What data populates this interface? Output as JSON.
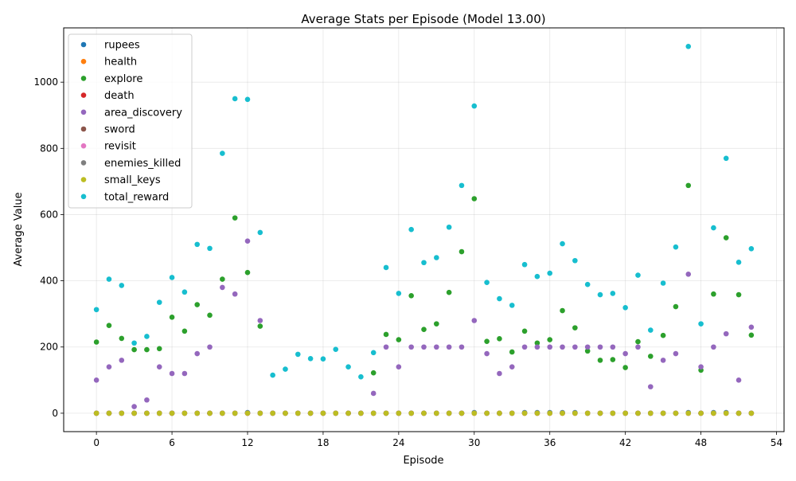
{
  "chart_data": {
    "type": "scatter",
    "title": "Average Stats per Episode (Model 13.00)",
    "xlabel": "Episode",
    "ylabel": "Average Value",
    "xlim": [
      -2.6,
      54.6
    ],
    "ylim": [
      -55.6,
      1164
    ],
    "xticks": [
      0,
      6,
      12,
      18,
      24,
      30,
      36,
      42,
      48,
      54
    ],
    "yticks": [
      0,
      200,
      400,
      600,
      800,
      1000
    ],
    "grid": true,
    "legend_position": "top-left",
    "x": [
      0,
      1,
      2,
      3,
      4,
      5,
      6,
      7,
      8,
      9,
      10,
      11,
      12,
      13,
      14,
      15,
      16,
      17,
      18,
      19,
      20,
      21,
      22,
      23,
      24,
      25,
      26,
      27,
      28,
      29,
      30,
      31,
      32,
      33,
      34,
      35,
      36,
      37,
      38,
      39,
      40,
      41,
      42,
      43,
      44,
      45,
      46,
      47,
      48,
      49,
      50,
      51,
      52
    ],
    "series": [
      {
        "name": "rupees",
        "color": "#1f77b4",
        "values": [
          0,
          0,
          0,
          0,
          0,
          0,
          0,
          0,
          0,
          0,
          0,
          0,
          2,
          0,
          0,
          0,
          0,
          0,
          0,
          0,
          0,
          0,
          0,
          0,
          0,
          0,
          0,
          0,
          0,
          0,
          2,
          0,
          0,
          0,
          2,
          2,
          2,
          2,
          2,
          0,
          0,
          0,
          0,
          0,
          0,
          0,
          0,
          2,
          0,
          2,
          2,
          0,
          0
        ]
      },
      {
        "name": "health",
        "color": "#ff7f0e",
        "values": [
          0,
          0,
          0,
          0,
          0,
          0,
          0,
          0,
          0,
          0,
          0,
          0,
          0,
          0,
          0,
          0,
          0,
          0,
          0,
          0,
          0,
          0,
          0,
          0,
          0,
          0,
          0,
          0,
          0,
          0,
          0,
          0,
          0,
          0,
          0,
          0,
          0,
          0,
          0,
          0,
          0,
          0,
          0,
          0,
          0,
          0,
          0,
          0,
          0,
          0,
          0,
          0,
          0
        ]
      },
      {
        "name": "explore",
        "color": "#2ca02c",
        "values": [
          215,
          265,
          226,
          192,
          192,
          195,
          290,
          248,
          328,
          296,
          405,
          590,
          425,
          263,
          null,
          null,
          null,
          null,
          null,
          null,
          null,
          null,
          122,
          238,
          222,
          355,
          253,
          270,
          365,
          488,
          648,
          217,
          225,
          185,
          248,
          212,
          222,
          310,
          258,
          188,
          160,
          162,
          138,
          216,
          172,
          235,
          322,
          688,
          130,
          360,
          530,
          358,
          236
        ]
      },
      {
        "name": "death",
        "color": "#d62728",
        "values": [
          0,
          0,
          0,
          0,
          0,
          0,
          0,
          0,
          0,
          0,
          0,
          0,
          0,
          0,
          0,
          0,
          0,
          0,
          0,
          0,
          0,
          0,
          0,
          0,
          0,
          0,
          0,
          0,
          0,
          0,
          0,
          0,
          0,
          0,
          0,
          0,
          0,
          0,
          0,
          0,
          0,
          0,
          0,
          0,
          0,
          0,
          0,
          0,
          0,
          0,
          0,
          0,
          0
        ]
      },
      {
        "name": "area_discovery",
        "color": "#9467bd",
        "values": [
          100,
          140,
          160,
          20,
          40,
          140,
          120,
          120,
          180,
          200,
          380,
          360,
          520,
          280,
          null,
          null,
          null,
          null,
          null,
          null,
          null,
          null,
          60,
          200,
          140,
          200,
          200,
          200,
          200,
          200,
          280,
          180,
          120,
          140,
          200,
          200,
          200,
          200,
          200,
          200,
          200,
          200,
          180,
          200,
          80,
          160,
          180,
          420,
          140,
          200,
          240,
          100,
          260
        ]
      },
      {
        "name": "sword",
        "color": "#8c564b",
        "values": [
          0,
          0,
          0,
          0,
          0,
          0,
          0,
          0,
          0,
          0,
          0,
          0,
          0,
          0,
          0,
          0,
          0,
          0,
          0,
          0,
          0,
          0,
          0,
          0,
          0,
          0,
          0,
          0,
          0,
          0,
          0,
          0,
          0,
          0,
          0,
          0,
          0,
          0,
          0,
          0,
          0,
          0,
          0,
          0,
          0,
          0,
          0,
          0,
          0,
          0,
          0,
          0,
          0
        ]
      },
      {
        "name": "revisit",
        "color": "#e377c2",
        "values": [
          0,
          0,
          0,
          0,
          0,
          0,
          0,
          0,
          0,
          0,
          0,
          0,
          0,
          0,
          0,
          0,
          0,
          0,
          0,
          0,
          0,
          0,
          0,
          0,
          0,
          0,
          0,
          0,
          0,
          0,
          0,
          0,
          0,
          0,
          0,
          0,
          0,
          0,
          0,
          0,
          0,
          0,
          0,
          0,
          0,
          0,
          0,
          0,
          0,
          0,
          0,
          0,
          0
        ]
      },
      {
        "name": "enemies_killed",
        "color": "#7f7f7f",
        "values": [
          0,
          0,
          0,
          0,
          0,
          0,
          0,
          0,
          0,
          0,
          0,
          0,
          1,
          0,
          0,
          0,
          0,
          0,
          0,
          0,
          0,
          0,
          0,
          0,
          0,
          0,
          0,
          0,
          0,
          0,
          1,
          0,
          0,
          0,
          1,
          1,
          1,
          1,
          1,
          0,
          0,
          0,
          0,
          0,
          0,
          0,
          0,
          1,
          0,
          1,
          1,
          0,
          0
        ]
      },
      {
        "name": "small_keys",
        "color": "#bcbd22",
        "values": [
          0,
          0,
          0,
          0,
          0,
          0,
          0,
          0,
          0,
          0,
          0,
          0,
          0,
          0,
          0,
          0,
          0,
          0,
          0,
          0,
          0,
          0,
          0,
          0,
          0,
          0,
          0,
          0,
          0,
          0,
          0,
          0,
          0,
          0,
          0,
          0,
          0,
          0,
          0,
          0,
          0,
          0,
          0,
          0,
          0,
          0,
          0,
          0,
          0,
          0,
          0,
          0,
          0
        ]
      },
      {
        "name": "total_reward",
        "color": "#17becf",
        "values": [
          313,
          405,
          386,
          212,
          232,
          335,
          410,
          366,
          510,
          498,
          785,
          950,
          948,
          546,
          115,
          133,
          178,
          165,
          164,
          193,
          140,
          110,
          183,
          440,
          362,
          555,
          455,
          470,
          562,
          688,
          928,
          395,
          346,
          326,
          449,
          413,
          423,
          512,
          461,
          389,
          358,
          362,
          319,
          417,
          251,
          393,
          502,
          1108,
          270,
          560,
          770,
          456,
          497
        ]
      }
    ]
  }
}
